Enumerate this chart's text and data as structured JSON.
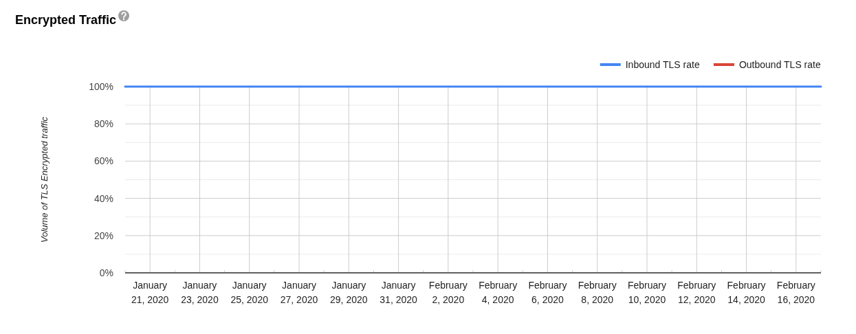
{
  "chart_data": {
    "type": "line",
    "title": "Encrypted Traffic",
    "ylabel": "Volume of TLS Encrypted traffic",
    "x": [
      "2020-01-20",
      "2020-01-21",
      "2020-01-22",
      "2020-01-23",
      "2020-01-24",
      "2020-01-25",
      "2020-01-26",
      "2020-01-27",
      "2020-01-28",
      "2020-01-29",
      "2020-01-30",
      "2020-01-31",
      "2020-02-01",
      "2020-02-02",
      "2020-02-03",
      "2020-02-04",
      "2020-02-05",
      "2020-02-06",
      "2020-02-07",
      "2020-02-08",
      "2020-02-09",
      "2020-02-10",
      "2020-02-11",
      "2020-02-12",
      "2020-02-13",
      "2020-02-14",
      "2020-02-15",
      "2020-02-16",
      "2020-02-17"
    ],
    "series": [
      {
        "name": "Inbound TLS rate",
        "color": "#4285f4",
        "values": [
          100,
          100,
          100,
          100,
          100,
          100,
          100,
          100,
          100,
          100,
          100,
          100,
          100,
          100,
          100,
          100,
          100,
          100,
          100,
          100,
          100,
          100,
          100,
          100,
          100,
          100,
          100,
          100,
          100
        ]
      },
      {
        "name": "Outbound TLS rate",
        "color": "#db4437",
        "values": [
          null,
          null,
          null,
          null,
          null,
          null,
          null,
          null,
          null,
          null,
          null,
          null,
          null,
          null,
          null,
          null,
          null,
          null,
          null,
          null,
          null,
          null,
          null,
          null,
          null,
          null,
          null,
          null,
          null
        ]
      }
    ],
    "xlim": [
      "2020-01-20",
      "2020-02-17"
    ],
    "xticks": [
      {
        "value": "2020-01-20",
        "label": null
      },
      {
        "value": "2020-01-21",
        "label": "January 21, 2020"
      },
      {
        "value": "2020-01-22",
        "label": null
      },
      {
        "value": "2020-01-23",
        "label": "January 23, 2020"
      },
      {
        "value": "2020-01-24",
        "label": null
      },
      {
        "value": "2020-01-25",
        "label": "January 25, 2020"
      },
      {
        "value": "2020-01-26",
        "label": null
      },
      {
        "value": "2020-01-27",
        "label": "January 27, 2020"
      },
      {
        "value": "2020-01-28",
        "label": null
      },
      {
        "value": "2020-01-29",
        "label": "January 29, 2020"
      },
      {
        "value": "2020-01-30",
        "label": null
      },
      {
        "value": "2020-01-31",
        "label": "January 31, 2020"
      },
      {
        "value": "2020-02-01",
        "label": null
      },
      {
        "value": "2020-02-02",
        "label": "February 2, 2020"
      },
      {
        "value": "2020-02-03",
        "label": null
      },
      {
        "value": "2020-02-04",
        "label": "February 4, 2020"
      },
      {
        "value": "2020-02-05",
        "label": null
      },
      {
        "value": "2020-02-06",
        "label": "February 6, 2020"
      },
      {
        "value": "2020-02-07",
        "label": null
      },
      {
        "value": "2020-02-08",
        "label": "February 8, 2020"
      },
      {
        "value": "2020-02-09",
        "label": null
      },
      {
        "value": "2020-02-10",
        "label": "February 10, 2020"
      },
      {
        "value": "2020-02-11",
        "label": null
      },
      {
        "value": "2020-02-12",
        "label": "February 12, 2020"
      },
      {
        "value": "2020-02-13",
        "label": null
      },
      {
        "value": "2020-02-14",
        "label": "February 14, 2020"
      },
      {
        "value": "2020-02-15",
        "label": null
      },
      {
        "value": "2020-02-16",
        "label": "February 16, 2020"
      },
      {
        "value": "2020-02-17",
        "label": null
      }
    ],
    "ylim": [
      0,
      100
    ],
    "yticks": [
      {
        "value": 0,
        "label": "0%"
      },
      {
        "value": 10,
        "label": null
      },
      {
        "value": 20,
        "label": "20%"
      },
      {
        "value": 30,
        "label": null
      },
      {
        "value": 40,
        "label": "40%"
      },
      {
        "value": 50,
        "label": null
      },
      {
        "value": 60,
        "label": "60%"
      },
      {
        "value": 70,
        "label": null
      },
      {
        "value": 80,
        "label": "80%"
      },
      {
        "value": 90,
        "label": null
      },
      {
        "value": 100,
        "label": "100%"
      }
    ],
    "grid": true,
    "legend": "top right"
  }
}
